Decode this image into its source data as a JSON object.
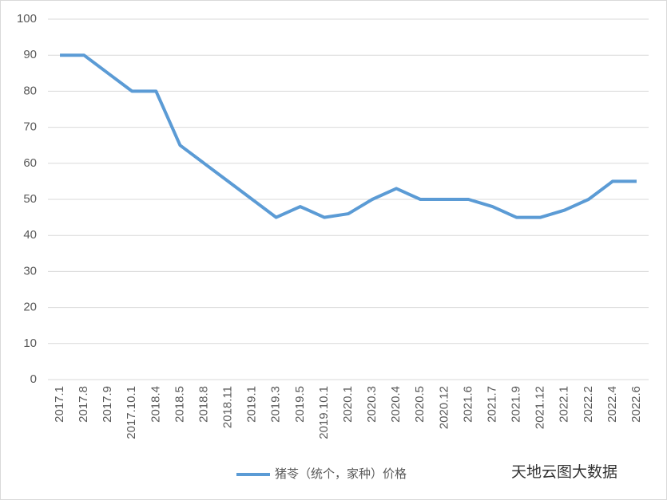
{
  "chart_data": {
    "type": "line",
    "categories": [
      "2017.1",
      "2017.8",
      "2017.9",
      "2017.10.1",
      "2018.4",
      "2018.5",
      "2018.8",
      "2018.11",
      "2019.1",
      "2019.3",
      "2019.5",
      "2019.10.1",
      "2020.1",
      "2020.3",
      "2020.4",
      "2020.5",
      "2020.12",
      "2021.6",
      "2021.7",
      "2021.9",
      "2021.12",
      "2022.1",
      "2022.2",
      "2022.4",
      "2022.6"
    ],
    "series": [
      {
        "name": "猪苓（统个，家种）价格",
        "color": "#5b9bd5",
        "values": [
          90,
          90,
          85,
          80,
          80,
          65,
          60,
          55,
          50,
          45,
          48,
          45,
          46,
          50,
          53,
          50,
          50,
          50,
          48,
          45,
          45,
          47,
          50,
          55,
          55
        ]
      }
    ],
    "ylim": [
      0,
      100
    ],
    "yticks": [
      0,
      10,
      20,
      30,
      40,
      50,
      60,
      70,
      80,
      90,
      100
    ],
    "grid": true,
    "legend": "bottom",
    "watermark": "天地云图大数据"
  }
}
